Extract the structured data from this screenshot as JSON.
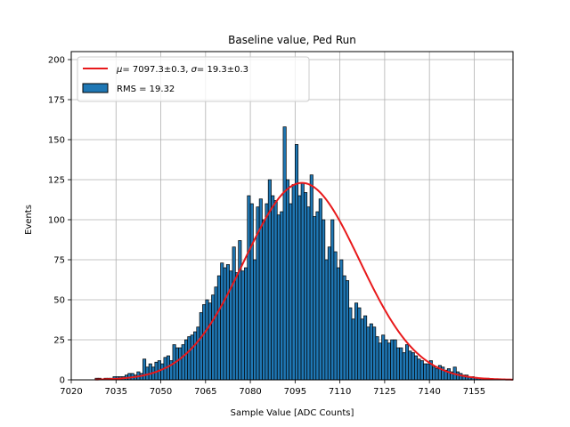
{
  "chart_data": {
    "type": "bar",
    "title": "Baseline value, Ped Run",
    "xlabel": "Sample Value [ADC Counts]",
    "ylabel": "Events",
    "xlim": [
      7020,
      7168
    ],
    "ylim": [
      0,
      205
    ],
    "xticks": [
      7020,
      7035,
      7050,
      7065,
      7080,
      7095,
      7110,
      7125,
      7140,
      7155
    ],
    "yticks": [
      0,
      25,
      50,
      75,
      100,
      125,
      150,
      175,
      200
    ],
    "grid": true,
    "legend_position": "top-left",
    "bin_width": 1,
    "series": [
      {
        "name": "RMS = 19.32",
        "kind": "histogram",
        "color": "#1f77b4",
        "edgecolor": "#000000",
        "x": [
          7028,
          7029,
          7030,
          7031,
          7032,
          7033,
          7034,
          7035,
          7036,
          7037,
          7038,
          7039,
          7040,
          7041,
          7042,
          7043,
          7044,
          7045,
          7046,
          7047,
          7048,
          7049,
          7050,
          7051,
          7052,
          7053,
          7054,
          7055,
          7056,
          7057,
          7058,
          7059,
          7060,
          7061,
          7062,
          7063,
          7064,
          7065,
          7066,
          7067,
          7068,
          7069,
          7070,
          7071,
          7072,
          7073,
          7074,
          7075,
          7076,
          7077,
          7078,
          7079,
          7080,
          7081,
          7082,
          7083,
          7084,
          7085,
          7086,
          7087,
          7088,
          7089,
          7090,
          7091,
          7092,
          7093,
          7094,
          7095,
          7096,
          7097,
          7098,
          7099,
          7100,
          7101,
          7102,
          7103,
          7104,
          7105,
          7106,
          7107,
          7108,
          7109,
          7110,
          7111,
          7112,
          7113,
          7114,
          7115,
          7116,
          7117,
          7118,
          7119,
          7120,
          7121,
          7122,
          7123,
          7124,
          7125,
          7126,
          7127,
          7128,
          7129,
          7130,
          7131,
          7132,
          7133,
          7134,
          7135,
          7136,
          7137,
          7138,
          7139,
          7140,
          7141,
          7142,
          7143,
          7144,
          7145,
          7146,
          7147,
          7148,
          7149,
          7150,
          7151,
          7152,
          7153,
          7154,
          7155,
          7156,
          7157,
          7158,
          7159,
          7160,
          7161
        ],
        "values": [
          1,
          1,
          0,
          1,
          1,
          1,
          2,
          2,
          2,
          2,
          3,
          4,
          4,
          3,
          5,
          4,
          13,
          8,
          10,
          8,
          11,
          12,
          10,
          14,
          15,
          12,
          22,
          20,
          20,
          22,
          25,
          27,
          28,
          30,
          33,
          42,
          47,
          50,
          48,
          53,
          58,
          65,
          73,
          70,
          72,
          68,
          83,
          67,
          87,
          68,
          70,
          115,
          110,
          75,
          108,
          113,
          100,
          110,
          125,
          115,
          112,
          103,
          105,
          158,
          125,
          110,
          122,
          147,
          115,
          123,
          117,
          108,
          128,
          102,
          105,
          113,
          100,
          75,
          83,
          100,
          80,
          70,
          75,
          65,
          62,
          45,
          38,
          48,
          45,
          38,
          40,
          33,
          35,
          33,
          27,
          23,
          28,
          25,
          23,
          25,
          25,
          20,
          20,
          17,
          22,
          18,
          17,
          15,
          13,
          12,
          10,
          10,
          12,
          8,
          7,
          9,
          8,
          6,
          7,
          5,
          8,
          5,
          4,
          3,
          3,
          2,
          2,
          1,
          1,
          1,
          1,
          1,
          0,
          0
        ],
        "__values_note": ""
      },
      {
        "name": "μ = 7097.3±0.3, σ = 19.3±0.3",
        "kind": "line",
        "color": "#e8191b",
        "x": [
          7028,
          7168
        ],
        "fit": {
          "mu": 7097.3,
          "sigma": 19.3,
          "amplitude": 123
        }
      }
    ],
    "legend": {
      "fit_text_mu_symbol": "μ",
      "fit_text_mu_value": "= 7097.3±0.3, ",
      "fit_text_sigma_symbol": "σ",
      "fit_text_sigma_value": "= 19.3±0.3",
      "hist_text": "RMS = 19.32"
    },
    "colors": {
      "bar_fill": "#1f77b4",
      "bar_edge": "#000000",
      "fit_line": "#e8191b",
      "grid": "#b0b0b0",
      "legend_frame": "#cccccc"
    }
  }
}
